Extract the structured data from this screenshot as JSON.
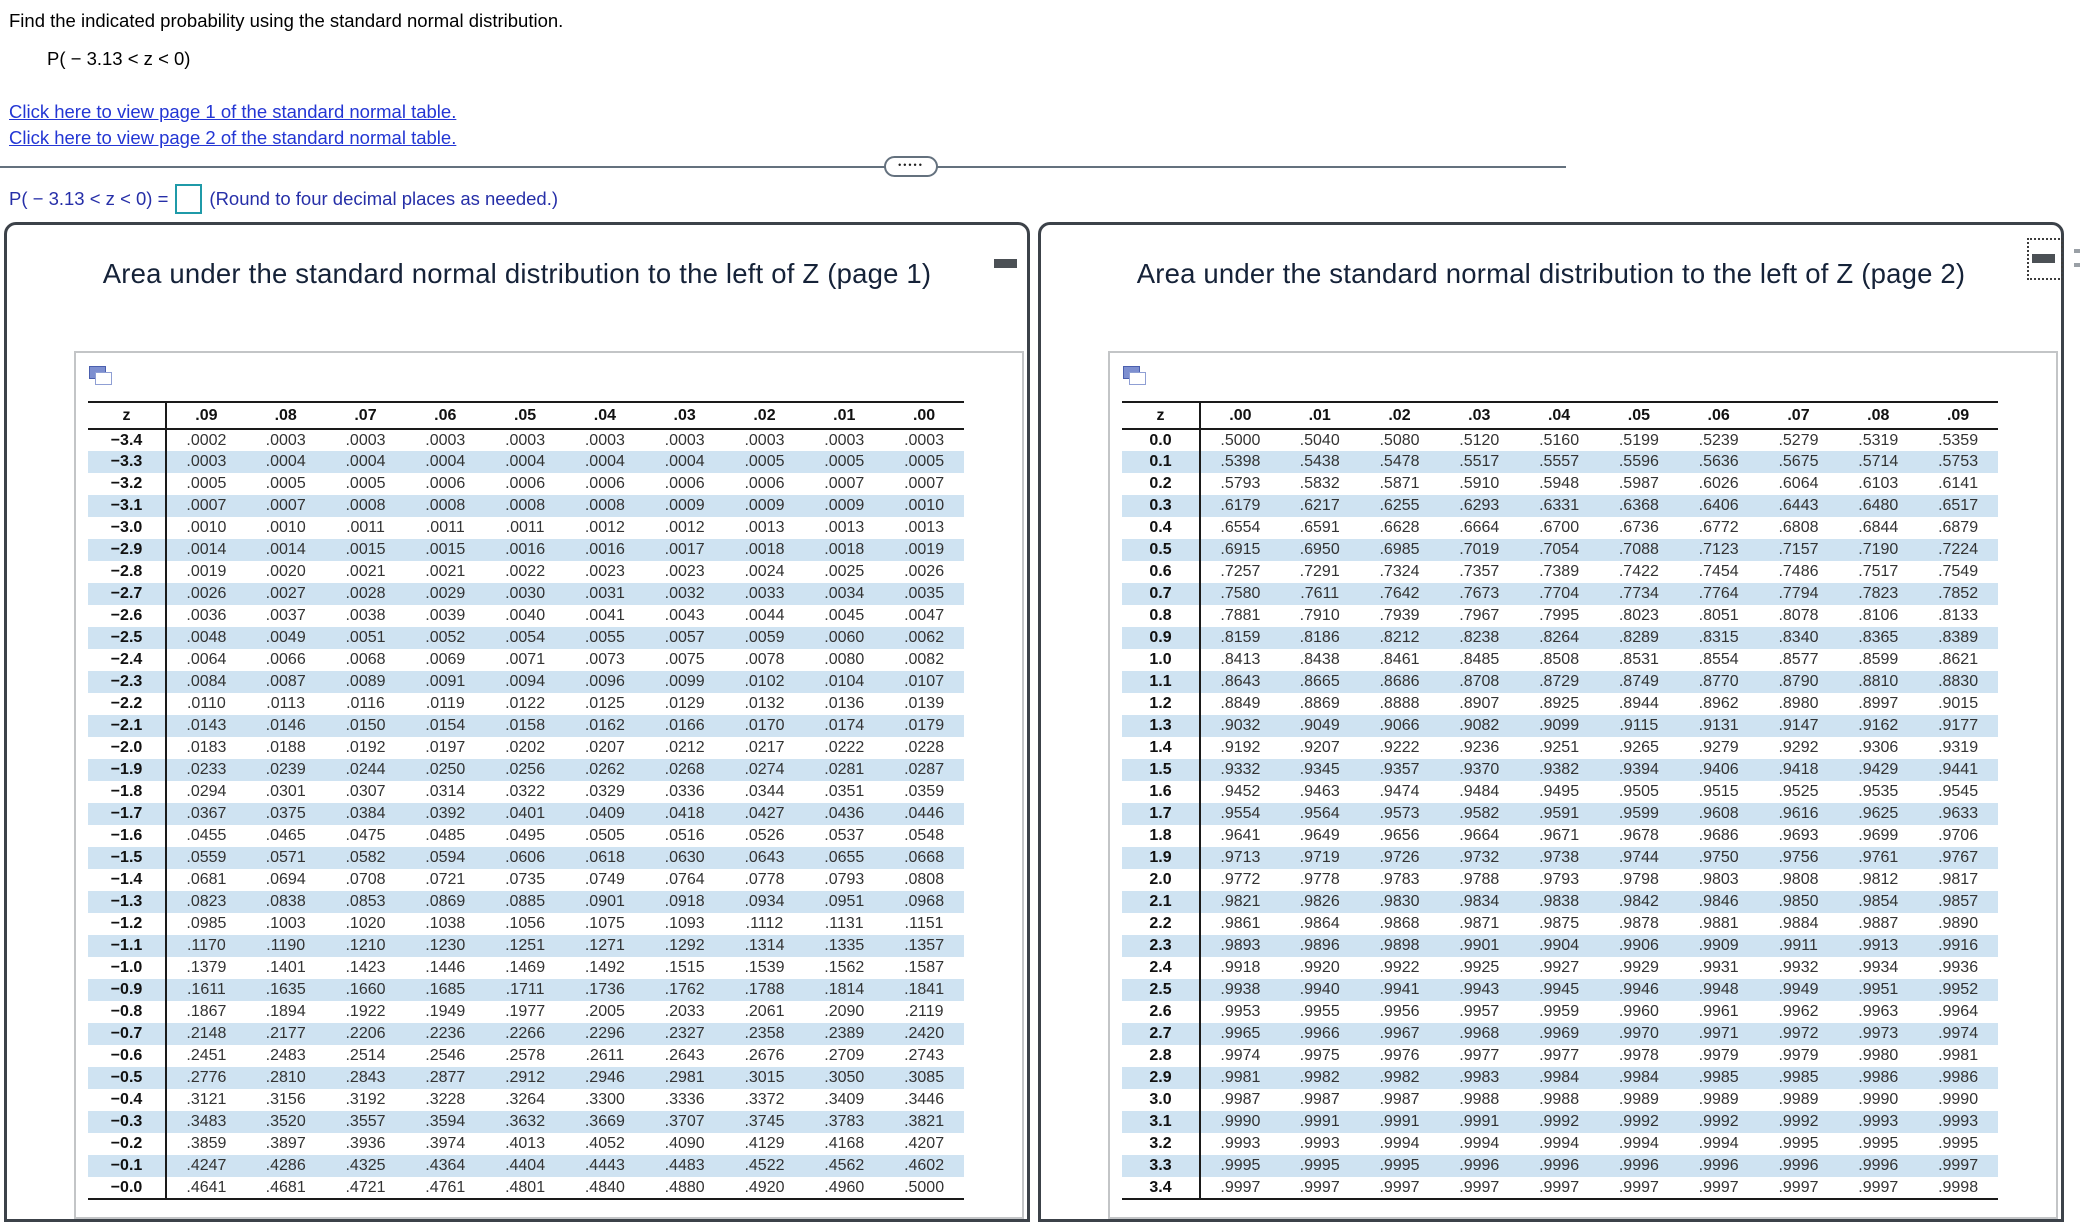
{
  "question": {
    "prompt": "Find the indicated probability using the standard normal distribution.",
    "expression": "P( − 3.13 < z < 0)",
    "link_page1": "Click here to view page 1 of the standard normal table.",
    "link_page2": "Click here to view page 2 of the standard normal table."
  },
  "splitter": {
    "dots": "•••••"
  },
  "answer": {
    "prefix": "P( − 3.13 < z < 0) =",
    "value": "",
    "note": "(Round to four decimal places as needed.)"
  },
  "colors": {
    "link_blue": "#2336d4",
    "answer_blue": "#262fa8",
    "row_highlight": "#cfe3f2",
    "title_navy": "#152238",
    "input_border_teal": "#1f9aa8"
  },
  "page1": {
    "title": "Area under the standard normal distribution to the left of Z (page 1)",
    "columns": [
      "z",
      ".09",
      ".08",
      ".07",
      ".06",
      ".05",
      ".04",
      ".03",
      ".02",
      ".01",
      ".00"
    ],
    "rows": [
      [
        "−3.4",
        ".0002",
        ".0003",
        ".0003",
        ".0003",
        ".0003",
        ".0003",
        ".0003",
        ".0003",
        ".0003",
        ".0003"
      ],
      [
        "−3.3",
        ".0003",
        ".0004",
        ".0004",
        ".0004",
        ".0004",
        ".0004",
        ".0004",
        ".0005",
        ".0005",
        ".0005"
      ],
      [
        "−3.2",
        ".0005",
        ".0005",
        ".0005",
        ".0006",
        ".0006",
        ".0006",
        ".0006",
        ".0006",
        ".0007",
        ".0007"
      ],
      [
        "−3.1",
        ".0007",
        ".0007",
        ".0008",
        ".0008",
        ".0008",
        ".0008",
        ".0009",
        ".0009",
        ".0009",
        ".0010"
      ],
      [
        "−3.0",
        ".0010",
        ".0010",
        ".0011",
        ".0011",
        ".0011",
        ".0012",
        ".0012",
        ".0013",
        ".0013",
        ".0013"
      ],
      [
        "−2.9",
        ".0014",
        ".0014",
        ".0015",
        ".0015",
        ".0016",
        ".0016",
        ".0017",
        ".0018",
        ".0018",
        ".0019"
      ],
      [
        "−2.8",
        ".0019",
        ".0020",
        ".0021",
        ".0021",
        ".0022",
        ".0023",
        ".0023",
        ".0024",
        ".0025",
        ".0026"
      ],
      [
        "−2.7",
        ".0026",
        ".0027",
        ".0028",
        ".0029",
        ".0030",
        ".0031",
        ".0032",
        ".0033",
        ".0034",
        ".0035"
      ],
      [
        "−2.6",
        ".0036",
        ".0037",
        ".0038",
        ".0039",
        ".0040",
        ".0041",
        ".0043",
        ".0044",
        ".0045",
        ".0047"
      ],
      [
        "−2.5",
        ".0048",
        ".0049",
        ".0051",
        ".0052",
        ".0054",
        ".0055",
        ".0057",
        ".0059",
        ".0060",
        ".0062"
      ],
      [
        "−2.4",
        ".0064",
        ".0066",
        ".0068",
        ".0069",
        ".0071",
        ".0073",
        ".0075",
        ".0078",
        ".0080",
        ".0082"
      ],
      [
        "−2.3",
        ".0084",
        ".0087",
        ".0089",
        ".0091",
        ".0094",
        ".0096",
        ".0099",
        ".0102",
        ".0104",
        ".0107"
      ],
      [
        "−2.2",
        ".0110",
        ".0113",
        ".0116",
        ".0119",
        ".0122",
        ".0125",
        ".0129",
        ".0132",
        ".0136",
        ".0139"
      ],
      [
        "−2.1",
        ".0143",
        ".0146",
        ".0150",
        ".0154",
        ".0158",
        ".0162",
        ".0166",
        ".0170",
        ".0174",
        ".0179"
      ],
      [
        "−2.0",
        ".0183",
        ".0188",
        ".0192",
        ".0197",
        ".0202",
        ".0207",
        ".0212",
        ".0217",
        ".0222",
        ".0228"
      ],
      [
        "−1.9",
        ".0233",
        ".0239",
        ".0244",
        ".0250",
        ".0256",
        ".0262",
        ".0268",
        ".0274",
        ".0281",
        ".0287"
      ],
      [
        "−1.8",
        ".0294",
        ".0301",
        ".0307",
        ".0314",
        ".0322",
        ".0329",
        ".0336",
        ".0344",
        ".0351",
        ".0359"
      ],
      [
        "−1.7",
        ".0367",
        ".0375",
        ".0384",
        ".0392",
        ".0401",
        ".0409",
        ".0418",
        ".0427",
        ".0436",
        ".0446"
      ],
      [
        "−1.6",
        ".0455",
        ".0465",
        ".0475",
        ".0485",
        ".0495",
        ".0505",
        ".0516",
        ".0526",
        ".0537",
        ".0548"
      ],
      [
        "−1.5",
        ".0559",
        ".0571",
        ".0582",
        ".0594",
        ".0606",
        ".0618",
        ".0630",
        ".0643",
        ".0655",
        ".0668"
      ],
      [
        "−1.4",
        ".0681",
        ".0694",
        ".0708",
        ".0721",
        ".0735",
        ".0749",
        ".0764",
        ".0778",
        ".0793",
        ".0808"
      ],
      [
        "−1.3",
        ".0823",
        ".0838",
        ".0853",
        ".0869",
        ".0885",
        ".0901",
        ".0918",
        ".0934",
        ".0951",
        ".0968"
      ],
      [
        "−1.2",
        ".0985",
        ".1003",
        ".1020",
        ".1038",
        ".1056",
        ".1075",
        ".1093",
        ".1112",
        ".1131",
        ".1151"
      ],
      [
        "−1.1",
        ".1170",
        ".1190",
        ".1210",
        ".1230",
        ".1251",
        ".1271",
        ".1292",
        ".1314",
        ".1335",
        ".1357"
      ],
      [
        "−1.0",
        ".1379",
        ".1401",
        ".1423",
        ".1446",
        ".1469",
        ".1492",
        ".1515",
        ".1539",
        ".1562",
        ".1587"
      ],
      [
        "−0.9",
        ".1611",
        ".1635",
        ".1660",
        ".1685",
        ".1711",
        ".1736",
        ".1762",
        ".1788",
        ".1814",
        ".1841"
      ],
      [
        "−0.8",
        ".1867",
        ".1894",
        ".1922",
        ".1949",
        ".1977",
        ".2005",
        ".2033",
        ".2061",
        ".2090",
        ".2119"
      ],
      [
        "−0.7",
        ".2148",
        ".2177",
        ".2206",
        ".2236",
        ".2266",
        ".2296",
        ".2327",
        ".2358",
        ".2389",
        ".2420"
      ],
      [
        "−0.6",
        ".2451",
        ".2483",
        ".2514",
        ".2546",
        ".2578",
        ".2611",
        ".2643",
        ".2676",
        ".2709",
        ".2743"
      ],
      [
        "−0.5",
        ".2776",
        ".2810",
        ".2843",
        ".2877",
        ".2912",
        ".2946",
        ".2981",
        ".3015",
        ".3050",
        ".3085"
      ],
      [
        "−0.4",
        ".3121",
        ".3156",
        ".3192",
        ".3228",
        ".3264",
        ".3300",
        ".3336",
        ".3372",
        ".3409",
        ".3446"
      ],
      [
        "−0.3",
        ".3483",
        ".3520",
        ".3557",
        ".3594",
        ".3632",
        ".3669",
        ".3707",
        ".3745",
        ".3783",
        ".3821"
      ],
      [
        "−0.2",
        ".3859",
        ".3897",
        ".3936",
        ".3974",
        ".4013",
        ".4052",
        ".4090",
        ".4129",
        ".4168",
        ".4207"
      ],
      [
        "−0.1",
        ".4247",
        ".4286",
        ".4325",
        ".4364",
        ".4404",
        ".4443",
        ".4483",
        ".4522",
        ".4562",
        ".4602"
      ],
      [
        "−0.0",
        ".4641",
        ".4681",
        ".4721",
        ".4761",
        ".4801",
        ".4840",
        ".4880",
        ".4920",
        ".4960",
        ".5000"
      ]
    ]
  },
  "page2": {
    "title": "Area under the standard normal distribution to the left of Z (page 2)",
    "columns": [
      "z",
      ".00",
      ".01",
      ".02",
      ".03",
      ".04",
      ".05",
      ".06",
      ".07",
      ".08",
      ".09"
    ],
    "rows": [
      [
        "0.0",
        ".5000",
        ".5040",
        ".5080",
        ".5120",
        ".5160",
        ".5199",
        ".5239",
        ".5279",
        ".5319",
        ".5359"
      ],
      [
        "0.1",
        ".5398",
        ".5438",
        ".5478",
        ".5517",
        ".5557",
        ".5596",
        ".5636",
        ".5675",
        ".5714",
        ".5753"
      ],
      [
        "0.2",
        ".5793",
        ".5832",
        ".5871",
        ".5910",
        ".5948",
        ".5987",
        ".6026",
        ".6064",
        ".6103",
        ".6141"
      ],
      [
        "0.3",
        ".6179",
        ".6217",
        ".6255",
        ".6293",
        ".6331",
        ".6368",
        ".6406",
        ".6443",
        ".6480",
        ".6517"
      ],
      [
        "0.4",
        ".6554",
        ".6591",
        ".6628",
        ".6664",
        ".6700",
        ".6736",
        ".6772",
        ".6808",
        ".6844",
        ".6879"
      ],
      [
        "0.5",
        ".6915",
        ".6950",
        ".6985",
        ".7019",
        ".7054",
        ".7088",
        ".7123",
        ".7157",
        ".7190",
        ".7224"
      ],
      [
        "0.6",
        ".7257",
        ".7291",
        ".7324",
        ".7357",
        ".7389",
        ".7422",
        ".7454",
        ".7486",
        ".7517",
        ".7549"
      ],
      [
        "0.7",
        ".7580",
        ".7611",
        ".7642",
        ".7673",
        ".7704",
        ".7734",
        ".7764",
        ".7794",
        ".7823",
        ".7852"
      ],
      [
        "0.8",
        ".7881",
        ".7910",
        ".7939",
        ".7967",
        ".7995",
        ".8023",
        ".8051",
        ".8078",
        ".8106",
        ".8133"
      ],
      [
        "0.9",
        ".8159",
        ".8186",
        ".8212",
        ".8238",
        ".8264",
        ".8289",
        ".8315",
        ".8340",
        ".8365",
        ".8389"
      ],
      [
        "1.0",
        ".8413",
        ".8438",
        ".8461",
        ".8485",
        ".8508",
        ".8531",
        ".8554",
        ".8577",
        ".8599",
        ".8621"
      ],
      [
        "1.1",
        ".8643",
        ".8665",
        ".8686",
        ".8708",
        ".8729",
        ".8749",
        ".8770",
        ".8790",
        ".8810",
        ".8830"
      ],
      [
        "1.2",
        ".8849",
        ".8869",
        ".8888",
        ".8907",
        ".8925",
        ".8944",
        ".8962",
        ".8980",
        ".8997",
        ".9015"
      ],
      [
        "1.3",
        ".9032",
        ".9049",
        ".9066",
        ".9082",
        ".9099",
        ".9115",
        ".9131",
        ".9147",
        ".9162",
        ".9177"
      ],
      [
        "1.4",
        ".9192",
        ".9207",
        ".9222",
        ".9236",
        ".9251",
        ".9265",
        ".9279",
        ".9292",
        ".9306",
        ".9319"
      ],
      [
        "1.5",
        ".9332",
        ".9345",
        ".9357",
        ".9370",
        ".9382",
        ".9394",
        ".9406",
        ".9418",
        ".9429",
        ".9441"
      ],
      [
        "1.6",
        ".9452",
        ".9463",
        ".9474",
        ".9484",
        ".9495",
        ".9505",
        ".9515",
        ".9525",
        ".9535",
        ".9545"
      ],
      [
        "1.7",
        ".9554",
        ".9564",
        ".9573",
        ".9582",
        ".9591",
        ".9599",
        ".9608",
        ".9616",
        ".9625",
        ".9633"
      ],
      [
        "1.8",
        ".9641",
        ".9649",
        ".9656",
        ".9664",
        ".9671",
        ".9678",
        ".9686",
        ".9693",
        ".9699",
        ".9706"
      ],
      [
        "1.9",
        ".9713",
        ".9719",
        ".9726",
        ".9732",
        ".9738",
        ".9744",
        ".9750",
        ".9756",
        ".9761",
        ".9767"
      ],
      [
        "2.0",
        ".9772",
        ".9778",
        ".9783",
        ".9788",
        ".9793",
        ".9798",
        ".9803",
        ".9808",
        ".9812",
        ".9817"
      ],
      [
        "2.1",
        ".9821",
        ".9826",
        ".9830",
        ".9834",
        ".9838",
        ".9842",
        ".9846",
        ".9850",
        ".9854",
        ".9857"
      ],
      [
        "2.2",
        ".9861",
        ".9864",
        ".9868",
        ".9871",
        ".9875",
        ".9878",
        ".9881",
        ".9884",
        ".9887",
        ".9890"
      ],
      [
        "2.3",
        ".9893",
        ".9896",
        ".9898",
        ".9901",
        ".9904",
        ".9906",
        ".9909",
        ".9911",
        ".9913",
        ".9916"
      ],
      [
        "2.4",
        ".9918",
        ".9920",
        ".9922",
        ".9925",
        ".9927",
        ".9929",
        ".9931",
        ".9932",
        ".9934",
        ".9936"
      ],
      [
        "2.5",
        ".9938",
        ".9940",
        ".9941",
        ".9943",
        ".9945",
        ".9946",
        ".9948",
        ".9949",
        ".9951",
        ".9952"
      ],
      [
        "2.6",
        ".9953",
        ".9955",
        ".9956",
        ".9957",
        ".9959",
        ".9960",
        ".9961",
        ".9962",
        ".9963",
        ".9964"
      ],
      [
        "2.7",
        ".9965",
        ".9966",
        ".9967",
        ".9968",
        ".9969",
        ".9970",
        ".9971",
        ".9972",
        ".9973",
        ".9974"
      ],
      [
        "2.8",
        ".9974",
        ".9975",
        ".9976",
        ".9977",
        ".9977",
        ".9978",
        ".9979",
        ".9979",
        ".9980",
        ".9981"
      ],
      [
        "2.9",
        ".9981",
        ".9982",
        ".9982",
        ".9983",
        ".9984",
        ".9984",
        ".9985",
        ".9985",
        ".9986",
        ".9986"
      ],
      [
        "3.0",
        ".9987",
        ".9987",
        ".9987",
        ".9988",
        ".9988",
        ".9989",
        ".9989",
        ".9989",
        ".9990",
        ".9990"
      ],
      [
        "3.1",
        ".9990",
        ".9991",
        ".9991",
        ".9991",
        ".9992",
        ".9992",
        ".9992",
        ".9992",
        ".9993",
        ".9993"
      ],
      [
        "3.2",
        ".9993",
        ".9993",
        ".9994",
        ".9994",
        ".9994",
        ".9994",
        ".9994",
        ".9995",
        ".9995",
        ".9995"
      ],
      [
        "3.3",
        ".9995",
        ".9995",
        ".9995",
        ".9996",
        ".9996",
        ".9996",
        ".9996",
        ".9996",
        ".9996",
        ".9997"
      ],
      [
        "3.4",
        ".9997",
        ".9997",
        ".9997",
        ".9997",
        ".9997",
        ".9997",
        ".9997",
        ".9997",
        ".9997",
        ".9998"
      ]
    ]
  }
}
